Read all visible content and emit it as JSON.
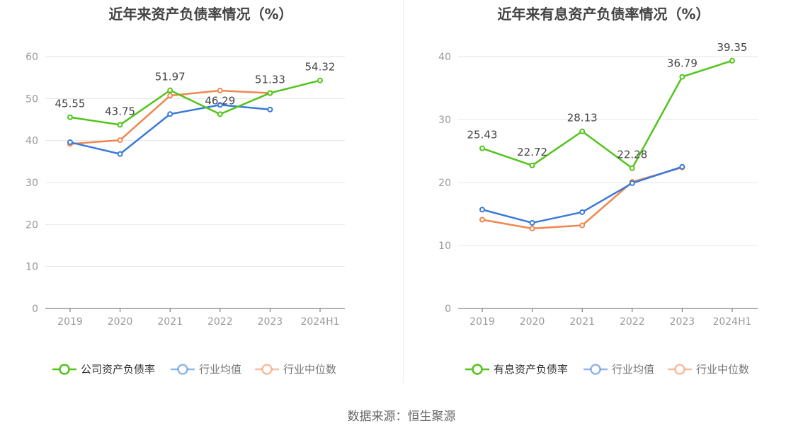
{
  "charts": [
    {
      "title": "近年来资产负债率情况（%）",
      "chart_data": {
        "type": "line",
        "categories": [
          "2019",
          "2020",
          "2021",
          "2022",
          "2023",
          "2024H1"
        ],
        "ylim": [
          0,
          60
        ],
        "yticks": [
          "0",
          "10",
          "20",
          "30",
          "40",
          "50",
          "60"
        ],
        "grid": true,
        "legend_position": "bottom",
        "series": [
          {
            "name": "公司资产负债率",
            "color": "#52c41a",
            "values": [
              45.55,
              43.75,
              51.97,
              46.29,
              51.33,
              54.32
            ],
            "labels": [
              "45.55",
              "43.75",
              "51.97",
              "46.29",
              "51.33",
              "54.32"
            ]
          },
          {
            "name": "行业均值",
            "color": "#3a7ad9",
            "values": [
              39.6,
              36.8,
              46.3,
              48.5,
              47.4,
              null
            ]
          },
          {
            "name": "行业中位数",
            "color": "#f08650",
            "values": [
              39.2,
              40.1,
              50.7,
              51.9,
              51.3,
              null
            ]
          }
        ]
      }
    },
    {
      "title": "近年来有息资产负债率情况（%）",
      "chart_data": {
        "type": "line",
        "categories": [
          "2019",
          "2020",
          "2021",
          "2022",
          "2023",
          "2024H1"
        ],
        "ylim": [
          0,
          40
        ],
        "yticks": [
          "0",
          "10",
          "20",
          "30",
          "40"
        ],
        "grid": true,
        "legend_position": "bottom",
        "series": [
          {
            "name": "有息资产负债率",
            "color": "#52c41a",
            "values": [
              25.43,
              22.72,
              28.13,
              22.28,
              36.79,
              39.35
            ],
            "labels": [
              "25.43",
              "22.72",
              "28.13",
              "22.28",
              "36.79",
              "39.35"
            ]
          },
          {
            "name": "行业均值",
            "color": "#3a7ad9",
            "values": [
              15.7,
              13.6,
              15.3,
              19.9,
              22.5,
              null
            ]
          },
          {
            "name": "行业中位数",
            "color": "#f08650",
            "values": [
              14.1,
              12.7,
              13.2,
              20.1,
              22.4,
              null
            ]
          }
        ]
      }
    }
  ],
  "source": {
    "label": "数据来源：",
    "value": "恒生聚源"
  }
}
